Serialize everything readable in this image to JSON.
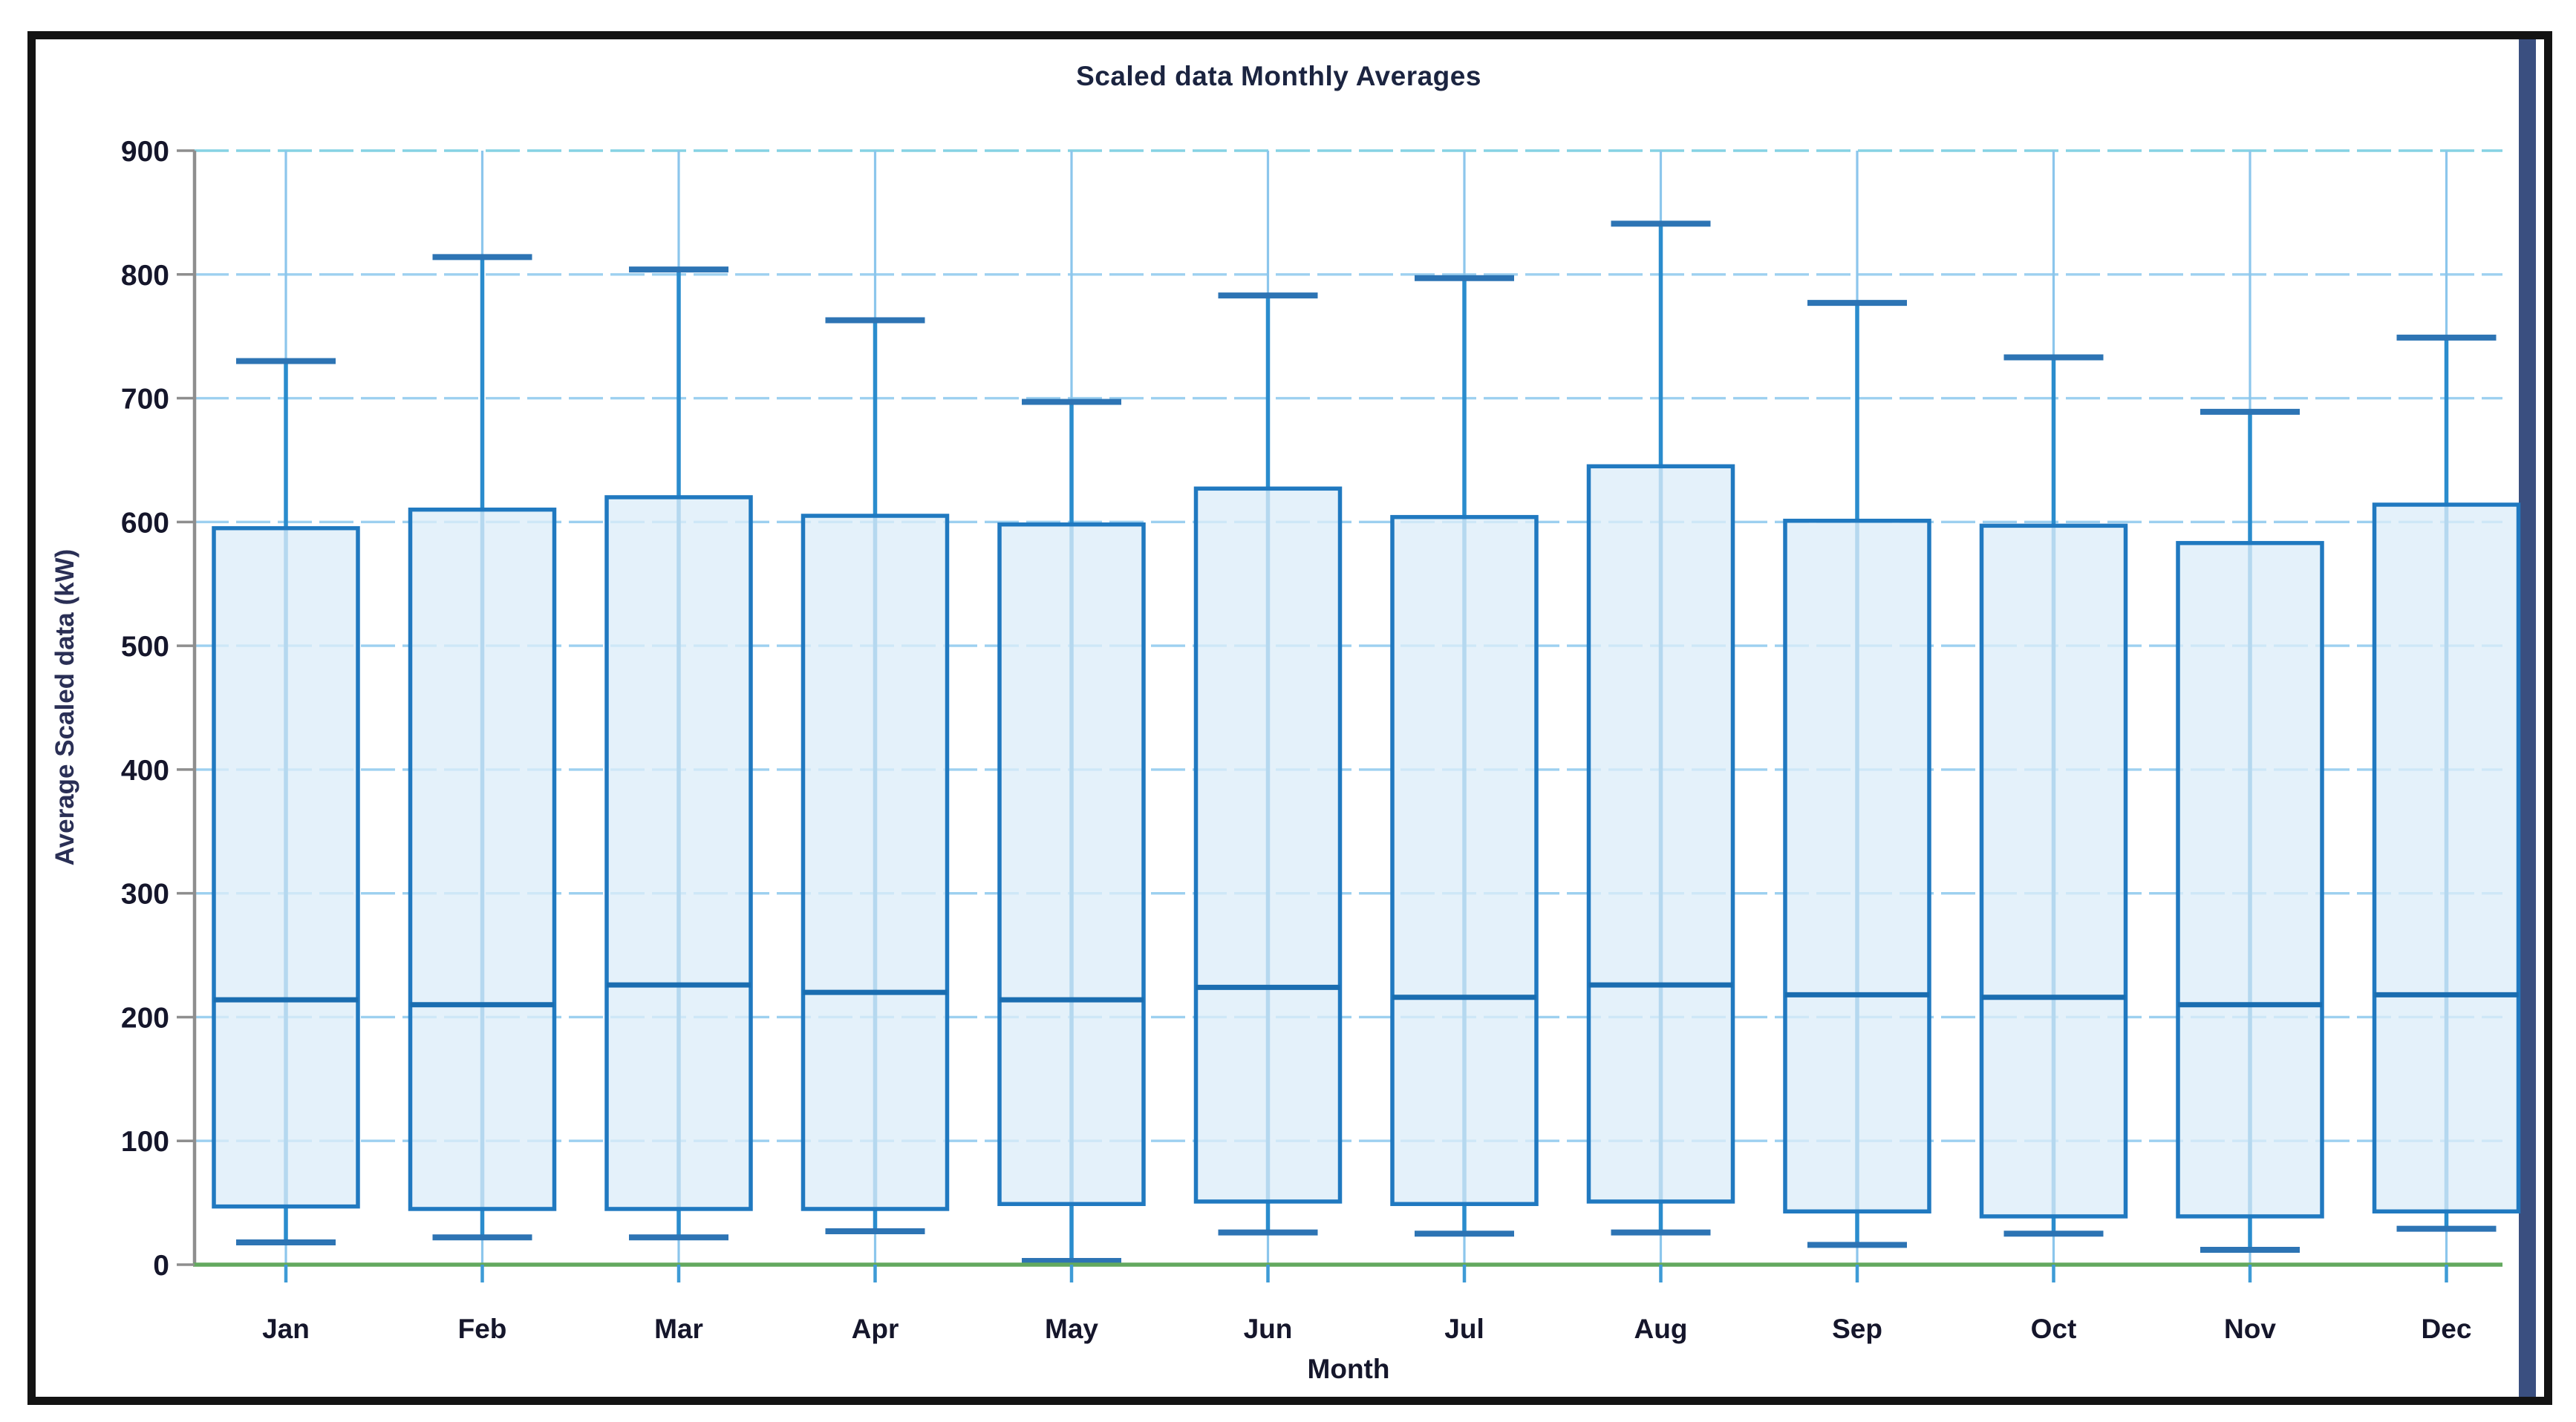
{
  "window": {
    "frame_border_color": "#131313",
    "edge_strip_color": "#3a4f80",
    "background_color": "#ffffff"
  },
  "chart_data": {
    "type": "box",
    "title": "Scaled data Monthly Averages",
    "xlabel": "Month",
    "ylabel": "Average Scaled data (kW)",
    "ylim": [
      0,
      900
    ],
    "yticks": [
      0,
      100,
      200,
      300,
      400,
      500,
      600,
      700,
      800,
      900
    ],
    "grid": "on",
    "legend": "none",
    "categories": [
      "Jan",
      "Feb",
      "Mar",
      "Apr",
      "May",
      "Jun",
      "Jul",
      "Aug",
      "Sep",
      "Oct",
      "Nov",
      "Dec"
    ],
    "series": [
      {
        "name": "Scaled data",
        "boxes": [
          {
            "month": "Jan",
            "whisker_low": 18,
            "box_low": 47,
            "median": 214,
            "box_high": 595,
            "whisker_high": 730
          },
          {
            "month": "Feb",
            "whisker_low": 22,
            "box_low": 45,
            "median": 210,
            "box_high": 610,
            "whisker_high": 814
          },
          {
            "month": "Mar",
            "whisker_low": 22,
            "box_low": 45,
            "median": 226,
            "box_high": 620,
            "whisker_high": 804
          },
          {
            "month": "Apr",
            "whisker_low": 27,
            "box_low": 45,
            "median": 220,
            "box_high": 605,
            "whisker_high": 763
          },
          {
            "month": "May",
            "whisker_low": 3,
            "box_low": 49,
            "median": 214,
            "box_high": 598,
            "whisker_high": 697
          },
          {
            "month": "Jun",
            "whisker_low": 26,
            "box_low": 51,
            "median": 224,
            "box_high": 627,
            "whisker_high": 783
          },
          {
            "month": "Jul",
            "whisker_low": 25,
            "box_low": 49,
            "median": 216,
            "box_high": 604,
            "whisker_high": 797
          },
          {
            "month": "Aug",
            "whisker_low": 26,
            "box_low": 51,
            "median": 226,
            "box_high": 645,
            "whisker_high": 841
          },
          {
            "month": "Sep",
            "whisker_low": 16,
            "box_low": 43,
            "median": 218,
            "box_high": 601,
            "whisker_high": 777
          },
          {
            "month": "Oct",
            "whisker_low": 25,
            "box_low": 39,
            "median": 216,
            "box_high": 597,
            "whisker_high": 733
          },
          {
            "month": "Nov",
            "whisker_low": 12,
            "box_low": 39,
            "median": 210,
            "box_high": 583,
            "whisker_high": 689
          },
          {
            "month": "Dec",
            "whisker_low": 29,
            "box_low": 43,
            "median": 218,
            "box_high": 614,
            "whisker_high": 749
          }
        ]
      }
    ]
  },
  "colors": {
    "title_text": "#1b2440",
    "tick_text": "#15162b",
    "axis_label_text": "#2a2f55",
    "grid_horizontal": "#9dd0f0",
    "grid_top_line": "#86d2e4",
    "grid_vertical": "#8cc6ec",
    "box_stroke": "#2079c0",
    "box_fill": "#dcedf9",
    "median_line": "#1a6db0",
    "whisker_line": "#2a8ccd",
    "whisker_cap": "#2d74b4",
    "y_axis_line": "#8e8e8e",
    "x_axis_line": "#63a95f",
    "x_tick_mark": "#3e9bd6"
  }
}
